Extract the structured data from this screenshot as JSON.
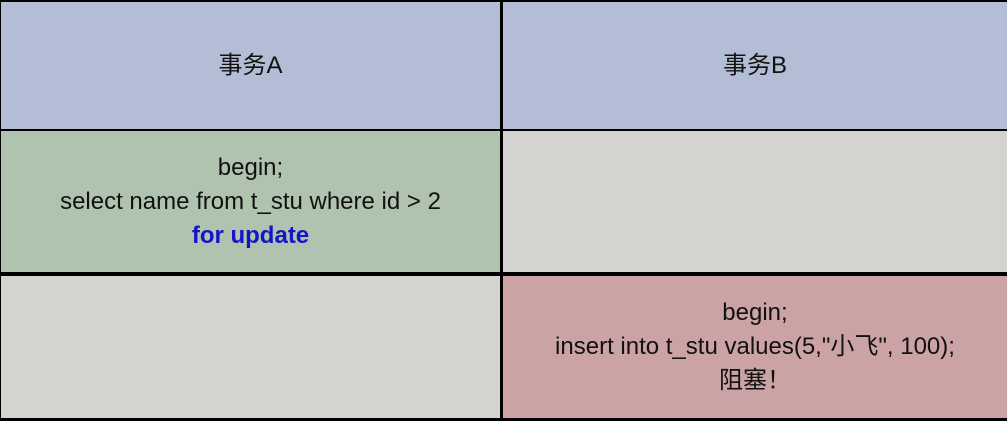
{
  "headers": {
    "a": "事务A",
    "b": "事务B"
  },
  "txn_a": {
    "line1": "begin;",
    "line2": "select name from t_stu where id > 2",
    "line3": "for update"
  },
  "txn_b": {
    "line1": "begin;",
    "line2": "insert into t_stu values(5,\"小飞\", 100);",
    "line3": "阻塞！"
  },
  "colors": {
    "header": "#b3bdd5",
    "txn_a_cell": "#b0c3ae",
    "empty_cell": "#d3d3d0",
    "txn_b_cell": "#cca3a5",
    "highlight": "#1414c8"
  }
}
